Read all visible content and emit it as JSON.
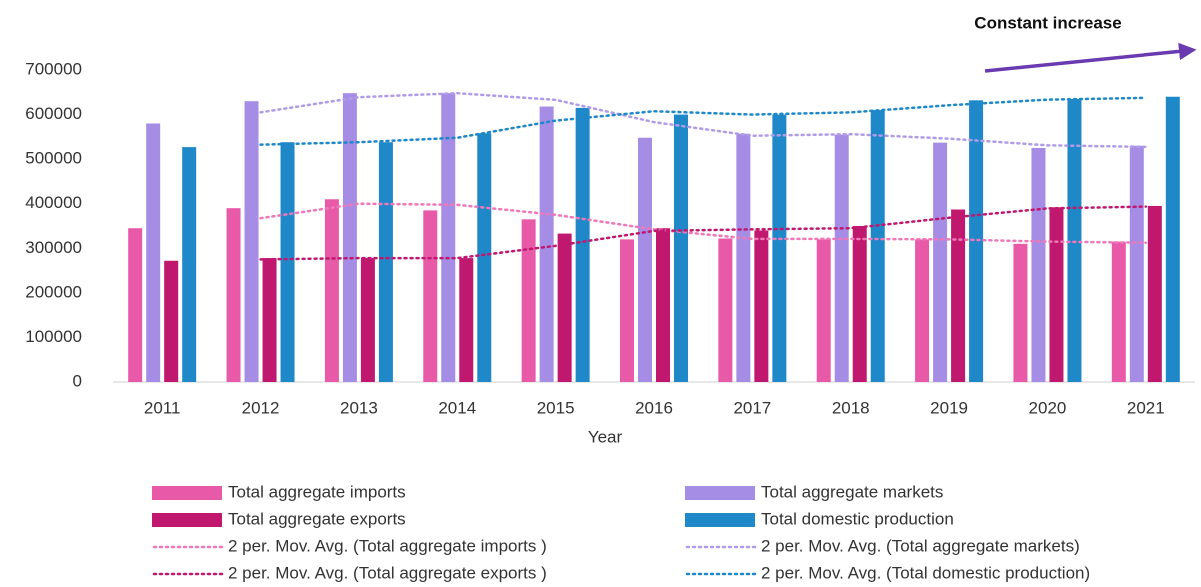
{
  "chart_data": {
    "type": "bar",
    "annotation": "Constant increase",
    "x_label": "Year",
    "categories": [
      "2011",
      "2012",
      "2013",
      "2014",
      "2015",
      "2016",
      "2017",
      "2018",
      "2019",
      "2020",
      "2021"
    ],
    "ylim": [
      0,
      700000
    ],
    "yticks": [
      0,
      100000,
      200000,
      300000,
      400000,
      500000,
      600000,
      700000
    ],
    "grid": false,
    "legend": "bottom",
    "series": [
      {
        "name": "Total aggregate imports",
        "type": "bar",
        "color": "#e85aa8",
        "values": [
          345000,
          390000,
          410000,
          385000,
          365000,
          320000,
          322000,
          320000,
          320000,
          310000,
          315000
        ]
      },
      {
        "name": "Total aggregate markets",
        "type": "bar",
        "color": "#a58de6",
        "values": [
          580000,
          630000,
          648000,
          648000,
          618000,
          548000,
          557000,
          555000,
          537000,
          525000,
          530000
        ]
      },
      {
        "name": "Total aggregate exports",
        "type": "bar",
        "color": "#c0186e",
        "values": [
          272000,
          278000,
          278000,
          278000,
          333000,
          345000,
          340000,
          350000,
          387000,
          392000,
          395000
        ]
      },
      {
        "name": "Total domestic production",
        "type": "bar",
        "color": "#1f88c8",
        "values": [
          527000,
          538000,
          538000,
          558000,
          615000,
          600000,
          600000,
          610000,
          632000,
          635000,
          640000
        ]
      },
      {
        "name": "2 per. Mov. Avg. (Total aggregate imports )",
        "type": "line",
        "color": "#ee78b8",
        "values": [
          null,
          367500,
          400000,
          397500,
          375000,
          342500,
          321000,
          321000,
          320000,
          315000,
          312500
        ]
      },
      {
        "name": "2 per. Mov. Avg. (Total aggregate markets)",
        "type": "line",
        "color": "#b09be8",
        "values": [
          null,
          605000,
          639000,
          648000,
          633000,
          583000,
          552500,
          556000,
          546000,
          531000,
          527500
        ]
      },
      {
        "name": "2 per. Mov. Avg. (Total aggregate exports )",
        "type": "line",
        "color": "#c0186e",
        "values": [
          null,
          275000,
          278000,
          278000,
          305500,
          339000,
          342500,
          345000,
          368500,
          389500,
          393500
        ]
      },
      {
        "name": "2 per. Mov. Avg. (Total domestic production)",
        "type": "line",
        "color": "#1f88c8",
        "values": [
          null,
          532500,
          538000,
          548000,
          586500,
          607500,
          600000,
          605000,
          621000,
          633500,
          637500
        ]
      }
    ]
  }
}
